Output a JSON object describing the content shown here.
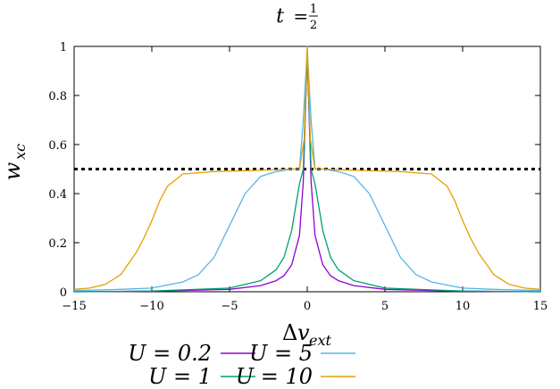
{
  "chart_data": {
    "type": "line",
    "title": "t = 1/2",
    "title_parts": {
      "var": "t",
      "eq": " = ",
      "num": "1",
      "den": "2"
    },
    "xlabel": {
      "delta": "Δ",
      "v": "v",
      "sub": "ext"
    },
    "ylabel": {
      "w": "w",
      "sub": "xc"
    },
    "xlim": [
      -15,
      15
    ],
    "ylim": [
      0,
      1
    ],
    "x_ticks": [
      -15,
      -10,
      -5,
      0,
      5,
      10,
      15
    ],
    "x_tick_labels": [
      "−15",
      "−10",
      "−5",
      "0",
      "5",
      "10",
      "15"
    ],
    "y_ticks": [
      0,
      0.2,
      0.4,
      0.6,
      0.8,
      1
    ],
    "y_tick_labels": [
      "0",
      "0.2",
      "0.4",
      "0.6",
      "0.8",
      "1"
    ],
    "grid": false,
    "legend_placement": "bottom-center",
    "reference_line": {
      "y": 0.5,
      "style": "dashed",
      "color": "#000000"
    },
    "series": [
      {
        "name": "U = 0.2",
        "color": "#9400d3",
        "x": [
          -15,
          -10,
          -5,
          -3,
          -2,
          -1.5,
          -1,
          -0.5,
          -0.25,
          0,
          0.25,
          0.5,
          1,
          1.5,
          2,
          3,
          5,
          10,
          15
        ],
        "y": [
          0.0,
          0.002,
          0.01,
          0.025,
          0.045,
          0.065,
          0.11,
          0.23,
          0.45,
          0.98,
          0.45,
          0.23,
          0.11,
          0.065,
          0.045,
          0.025,
          0.01,
          0.002,
          0.0
        ]
      },
      {
        "name": "U = 1",
        "color": "#009e73",
        "x": [
          -15,
          -10,
          -5,
          -3,
          -2,
          -1.5,
          -1,
          -0.5,
          -0.25,
          0,
          0.25,
          0.5,
          1,
          1.5,
          2,
          3,
          5,
          10,
          15
        ],
        "y": [
          0.0,
          0.003,
          0.015,
          0.045,
          0.09,
          0.14,
          0.25,
          0.44,
          0.5,
          0.96,
          0.5,
          0.44,
          0.25,
          0.14,
          0.09,
          0.045,
          0.015,
          0.003,
          0.0
        ]
      },
      {
        "name": "U = 5",
        "color": "#56b4e9",
        "x": [
          -15,
          -12,
          -10,
          -8,
          -7,
          -6,
          -5,
          -4,
          -3,
          -2,
          -1,
          -0.5,
          -0.25,
          0,
          0.25,
          0.5,
          1,
          2,
          3,
          4,
          5,
          6,
          7,
          8,
          10,
          12,
          15
        ],
        "y": [
          0.005,
          0.01,
          0.015,
          0.04,
          0.07,
          0.14,
          0.27,
          0.4,
          0.47,
          0.49,
          0.5,
          0.5,
          0.7,
          0.99,
          0.7,
          0.5,
          0.5,
          0.49,
          0.47,
          0.4,
          0.27,
          0.14,
          0.07,
          0.04,
          0.015,
          0.01,
          0.005
        ]
      },
      {
        "name": "U = 10",
        "color": "#e69f00",
        "x": [
          -15,
          -14,
          -13,
          -12,
          -11,
          -10.5,
          -10,
          -9.5,
          -9,
          -8,
          -6,
          -3,
          -1,
          -0.5,
          -0.2,
          0,
          0.2,
          0.5,
          1,
          3,
          6,
          8,
          9,
          9.5,
          10,
          10.5,
          11,
          12,
          13,
          14,
          15
        ],
        "y": [
          0.01,
          0.015,
          0.03,
          0.07,
          0.16,
          0.22,
          0.29,
          0.37,
          0.43,
          0.48,
          0.49,
          0.495,
          0.5,
          0.5,
          0.62,
          1.0,
          0.62,
          0.5,
          0.5,
          0.495,
          0.49,
          0.48,
          0.43,
          0.37,
          0.29,
          0.22,
          0.16,
          0.07,
          0.03,
          0.015,
          0.01
        ]
      }
    ]
  }
}
